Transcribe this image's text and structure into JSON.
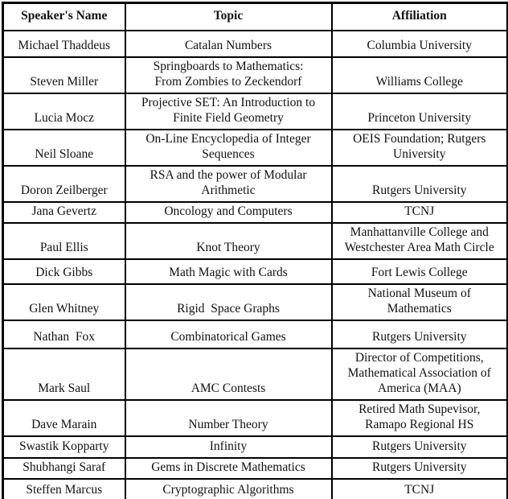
{
  "table": {
    "columns": [
      {
        "label": "Speaker's Name"
      },
      {
        "label": "Topic"
      },
      {
        "label": "Affiliation"
      }
    ],
    "rows": [
      {
        "speaker": "Michael Thaddeus",
        "topic": "Catalan Numbers",
        "affiliation": "Columbia University"
      },
      {
        "speaker": "Steven Miller",
        "topic": "Springboards to Mathematics:\nFrom Zombies to Zeckendorf",
        "affiliation": "Williams College"
      },
      {
        "speaker": "Lucia Mocz",
        "topic": "Projective SET: An Introduction to\nFinite Field Geometry",
        "affiliation": "Princeton University"
      },
      {
        "speaker": "Neil Sloane",
        "topic": "On-Line Encyclopedia of Integer\nSequences",
        "affiliation": "OEIS Foundation; Rutgers\nUniversity"
      },
      {
        "speaker": "Doron Zeilberger",
        "topic": "RSA and the power of Modular\nArithmetic",
        "affiliation": "Rutgers University"
      },
      {
        "speaker": "Jana Gevertz",
        "topic": "Oncology and Computers",
        "affiliation": "TCNJ"
      },
      {
        "speaker": "Paul Ellis",
        "topic": "Knot Theory",
        "affiliation": "Manhattanville College and\nWestchester Area Math Circle"
      },
      {
        "speaker": "Dick Gibbs",
        "topic": "Math Magic with Cards",
        "affiliation": "Fort Lewis College"
      },
      {
        "speaker": "Glen Whitney",
        "topic": "Rigid  Space Graphs",
        "affiliation": "National Museum of\nMathematics"
      },
      {
        "speaker": "Nathan  Fox",
        "topic": "Combinatorical Games",
        "affiliation": "Rutgers University"
      },
      {
        "speaker": "Mark Saul",
        "topic": "AMC Contests",
        "affiliation": "Director of Competitions,\nMathematical Association of\nAmerica (MAA)"
      },
      {
        "speaker": "Dave Marain",
        "topic": "Number Theory",
        "affiliation": "Retired Math Supevisor,\nRamapo Regional HS"
      },
      {
        "speaker": "Swastik Kopparty",
        "topic": "Infinity",
        "affiliation": "Rutgers University"
      },
      {
        "speaker": "Shubhangi Saraf",
        "topic": "Gems in Discrete Mathematics",
        "affiliation": "Rutgers University"
      },
      {
        "speaker": "Steffen Marcus",
        "topic": "Cryptographic Algorithms",
        "affiliation": "TCNJ"
      }
    ]
  }
}
